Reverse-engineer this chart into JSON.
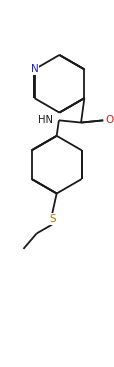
{
  "background_color": "#ffffff",
  "bond_color": "#1a1a1a",
  "atom_colors": {
    "N": "#2020cc",
    "O": "#cc2020",
    "S": "#aa7700",
    "C": "#1a1a1a"
  },
  "lw": 1.3,
  "dbo": 0.032,
  "figsize": [
    1.15,
    3.67
  ],
  "dpi": 100
}
